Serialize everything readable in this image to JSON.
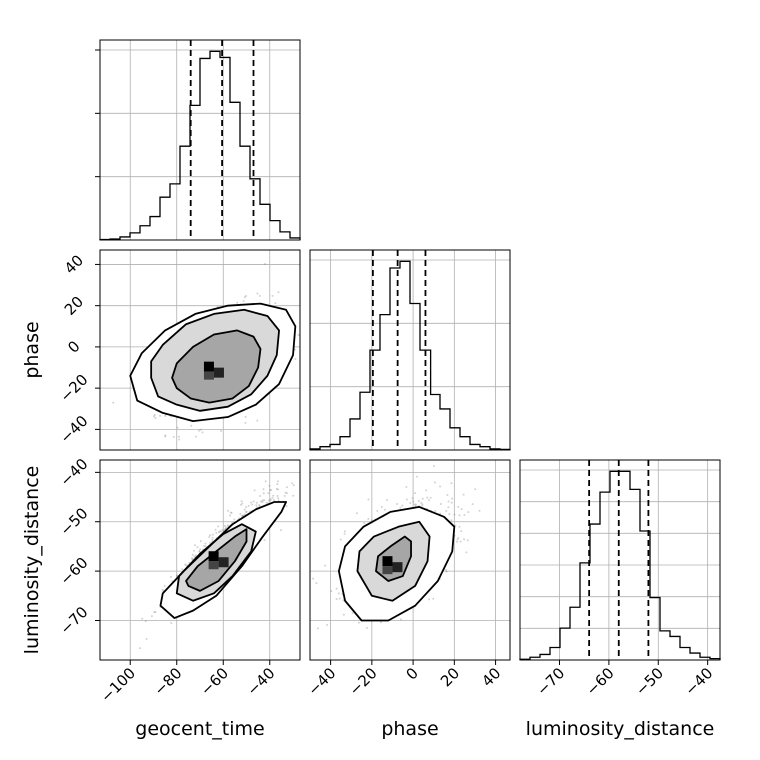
{
  "chart_data": {
    "type": "corner",
    "parameters": [
      "geocent_time",
      "phase",
      "luminosity_distance"
    ],
    "ranges": {
      "geocent_time": [
        -113,
        -27
      ],
      "phase": [
        -50,
        47
      ],
      "luminosity_distance": [
        -78,
        -37.5
      ]
    },
    "ticks": {
      "geocent_time": [
        -100,
        -80,
        -60,
        -40
      ],
      "phase": [
        -40,
        -20,
        0,
        20,
        40
      ],
      "luminosity_distance": [
        -70,
        -60,
        -50,
        -40
      ]
    },
    "tick_labels": {
      "geocent_time": [
        "−100",
        "−80",
        "−60",
        "−40"
      ],
      "phase": [
        "−40",
        "−20",
        "0",
        "20",
        "40"
      ],
      "luminosity_distance": [
        "−70",
        "−60",
        "−50",
        "−40"
      ]
    },
    "quantiles": {
      "geocent_time": [
        -74,
        -60.5,
        -47
      ],
      "phase": [
        -19.5,
        -7.5,
        6
      ],
      "luminosity_distance": [
        -64,
        -58,
        -52
      ]
    },
    "histograms": {
      "geocent_time": {
        "bins": [
          -113,
          -108.7,
          -104.4,
          -100.1,
          -95.8,
          -91.5,
          -87.2,
          -82.9,
          -78.6,
          -74.3,
          -70,
          -65.7,
          -61.4,
          -57.1,
          -52.8,
          -48.5,
          -44.2,
          -39.9,
          -35.6,
          -31.3,
          -27
        ],
        "counts": [
          0.5,
          1,
          3,
          7,
          14,
          23,
          42,
          55,
          92,
          132,
          178,
          185,
          179,
          135,
          92,
          60,
          35,
          19,
          8,
          2
        ]
      },
      "phase": {
        "bins": [
          -50,
          -45.15,
          -40.3,
          -35.45,
          -30.6,
          -25.75,
          -20.9,
          -16.05,
          -11.2,
          -6.35,
          -1.5,
          3.35,
          8.5,
          13.05,
          17.9,
          22.75,
          27.6,
          32.45,
          37.3,
          42.15,
          47
        ],
        "counts": [
          1,
          3,
          5,
          12,
          28,
          52,
          90,
          122,
          164,
          170,
          132,
          90,
          50,
          37,
          20,
          12,
          5,
          3,
          1,
          0.5
        ]
      },
      "luminosity_distance": {
        "bins": [
          -78,
          -75.975,
          -73.95,
          -71.925,
          -69.9,
          -67.875,
          -65.85,
          -63.825,
          -61.8,
          -59.775,
          -57.75,
          -55.725,
          -53.7,
          -51.675,
          -49.65,
          -47.625,
          -45.6,
          -43.575,
          -41.55,
          -39.525,
          -37.5
        ],
        "counts": [
          0.5,
          2,
          4,
          9,
          23,
          38,
          70,
          98,
          121,
          136,
          136,
          123,
          93,
          45,
          21,
          17,
          9,
          5,
          2,
          1
        ]
      }
    },
    "pairs": [
      {
        "x": "geocent_time",
        "y": "phase",
        "correlation": 0.45,
        "density_peak": [
          -64,
          -12
        ],
        "contours": [
          [
            [
              -80,
              -20
            ],
            [
              -74,
              -25
            ],
            [
              -66,
              -27
            ],
            [
              -56,
              -25
            ],
            [
              -49,
              -19
            ],
            [
              -45,
              -10
            ],
            [
              -44,
              -1
            ],
            [
              -47,
              5
            ],
            [
              -54,
              8
            ],
            [
              -64,
              6
            ],
            [
              -73,
              0
            ],
            [
              -80,
              -8
            ],
            [
              -82,
              -15
            ]
          ],
          [
            [
              -91,
              -15
            ],
            [
              -88,
              -24
            ],
            [
              -80,
              -28
            ],
            [
              -70,
              -31
            ],
            [
              -58,
              -29
            ],
            [
              -48,
              -23
            ],
            [
              -41,
              -14
            ],
            [
              -37,
              -4
            ],
            [
              -36,
              8
            ],
            [
              -41,
              15
            ],
            [
              -51,
              18
            ],
            [
              -64,
              16
            ],
            [
              -76,
              11
            ],
            [
              -86,
              1
            ],
            [
              -91,
              -7
            ]
          ],
          [
            [
              -100,
              -14
            ],
            [
              -97,
              -26
            ],
            [
              -86,
              -32
            ],
            [
              -73,
              -36
            ],
            [
              -58,
              -34
            ],
            [
              -46,
              -28
            ],
            [
              -36,
              -18
            ],
            [
              -30,
              -4
            ],
            [
              -29,
              10
            ],
            [
              -33,
              18
            ],
            [
              -44,
              21
            ],
            [
              -58,
              20
            ],
            [
              -72,
              16
            ],
            [
              -85,
              8
            ],
            [
              -95,
              -3
            ]
          ]
        ]
      },
      {
        "x": "geocent_time",
        "y": "luminosity_distance",
        "correlation": 0.9,
        "density_peak": [
          -62,
          -58
        ],
        "contours": [
          [
            [
              -75,
              -63
            ],
            [
              -70,
              -64
            ],
            [
              -62,
              -62
            ],
            [
              -55,
              -58
            ],
            [
              -50,
              -54
            ],
            [
              -50,
              -51.5
            ],
            [
              -55,
              -53
            ],
            [
              -63,
              -56
            ],
            [
              -71,
              -59
            ],
            [
              -76,
              -62
            ]
          ],
          [
            [
              -80,
              -64.5
            ],
            [
              -73,
              -66
            ],
            [
              -64,
              -64.5
            ],
            [
              -56,
              -61
            ],
            [
              -48,
              -56
            ],
            [
              -46,
              -52
            ],
            [
              -52,
              -50.5
            ],
            [
              -60,
              -52.5
            ],
            [
              -70,
              -56.5
            ],
            [
              -79,
              -61
            ]
          ],
          [
            [
              -87,
              -67
            ],
            [
              -81,
              -69.5
            ],
            [
              -73,
              -68
            ],
            [
              -63,
              -65
            ],
            [
              -52,
              -59
            ],
            [
              -43,
              -53
            ],
            [
              -35,
              -48
            ],
            [
              -33,
              -46
            ],
            [
              -38,
              -46
            ],
            [
              -46,
              -47.5
            ],
            [
              -56,
              -50.5
            ],
            [
              -66,
              -55
            ],
            [
              -77,
              -60
            ],
            [
              -86,
              -64.5
            ]
          ]
        ]
      },
      {
        "x": "phase",
        "y": "luminosity_distance",
        "correlation": 0.45,
        "density_peak": [
          -10,
          -59
        ],
        "contours": [
          [
            [
              -18,
              -60
            ],
            [
              -12,
              -62
            ],
            [
              -5,
              -61
            ],
            [
              -1,
              -57
            ],
            [
              -1,
              -54
            ],
            [
              -4,
              -53
            ],
            [
              -11,
              -55
            ],
            [
              -17,
              -57
            ]
          ],
          [
            [
              -27,
              -60
            ],
            [
              -20,
              -65
            ],
            [
              -10,
              -66
            ],
            [
              1,
              -63
            ],
            [
              7,
              -58
            ],
            [
              8,
              -53
            ],
            [
              3,
              -50
            ],
            [
              -7,
              -51
            ],
            [
              -19,
              -53
            ],
            [
              -26,
              -56
            ]
          ],
          [
            [
              -36,
              -60
            ],
            [
              -33,
              -66
            ],
            [
              -25,
              -70
            ],
            [
              -12,
              -70
            ],
            [
              1,
              -67
            ],
            [
              12,
              -62
            ],
            [
              19,
              -56
            ],
            [
              20,
              -51
            ],
            [
              15,
              -49
            ],
            [
              3,
              -47
            ],
            [
              -11,
              -48
            ],
            [
              -24,
              -51
            ],
            [
              -33,
              -55
            ]
          ]
        ]
      }
    ],
    "axis_labels": {
      "row_1_y": "phase",
      "row_2_y": "luminosity_distance",
      "col_0_x": "geocent_time",
      "col_1_x": "phase",
      "col_2_x": "luminosity_distance"
    },
    "grid": true,
    "colors": {
      "line": "#000000",
      "grid": "#b0b0b0",
      "scatter": "#7f7f7f"
    }
  }
}
